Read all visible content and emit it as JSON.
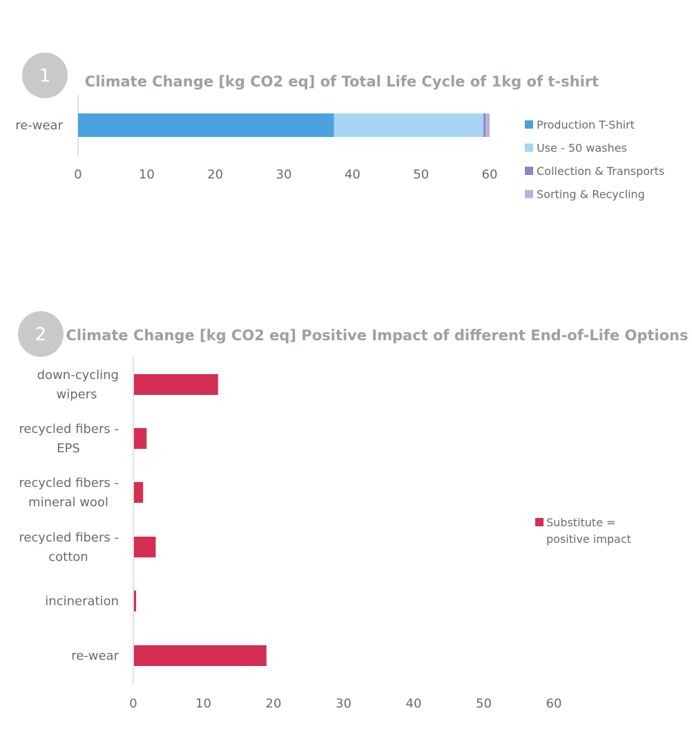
{
  "chart_data": [
    {
      "badge": "1",
      "type": "bar",
      "orientation": "horizontal",
      "stacked": true,
      "title": "Climate Change [kg CO2 eq] of Total Life Cycle of 1kg of t-shirt",
      "categories": [
        "re-wear"
      ],
      "series": [
        {
          "name": "Production  T-Shirt",
          "color": "#4aa3df",
          "values": [
            37.3
          ]
        },
        {
          "name": "Use - 50 washes",
          "color": "#a6d4f2",
          "values": [
            21.8
          ]
        },
        {
          "name": "Collection & Transports",
          "color": "#8e86c1",
          "values": [
            0.3
          ]
        },
        {
          "name": "Sorting & Recycling",
          "color": "#b8b3da",
          "values": [
            0.6
          ]
        }
      ],
      "xlim": [
        0,
        60
      ],
      "xticks": [
        "0",
        "10",
        "20",
        "30",
        "40",
        "50",
        "60"
      ],
      "legend_position": "right"
    },
    {
      "badge": "2",
      "type": "bar",
      "orientation": "horizontal",
      "title": "Climate Change [kg CO2 eq] Positive Impact of different End-of-Life Options",
      "categories": [
        [
          "down-cycling",
          "wipers"
        ],
        [
          "recycled fibers -",
          "EPS"
        ],
        [
          "recycled fibers -",
          "mineral wool"
        ],
        [
          "recycled fibers -",
          "cotton"
        ],
        [
          "incineration"
        ],
        [
          "re-wear"
        ]
      ],
      "series": [
        {
          "name": "Substitute =\npositive impact",
          "color": "#d42e52",
          "values": [
            12.0,
            1.8,
            1.3,
            3.1,
            0.3,
            18.9
          ]
        }
      ],
      "legend_lines": [
        "Substitute =",
        "positive impact"
      ],
      "xlim": [
        0,
        60
      ],
      "xticks": [
        "0",
        "10",
        "20",
        "30",
        "40",
        "50",
        "60"
      ],
      "legend_position": "right"
    }
  ]
}
